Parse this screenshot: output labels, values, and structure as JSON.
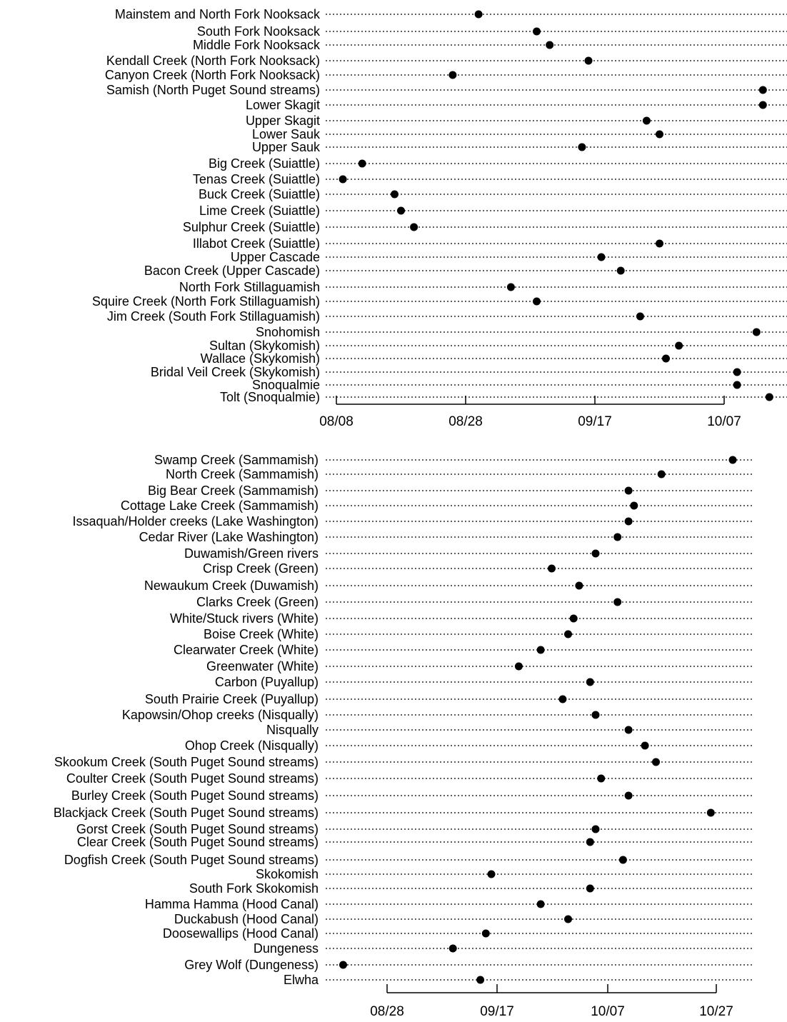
{
  "chart_data": [
    {
      "type": "scatter",
      "title": "",
      "xlabel": "",
      "ylabel": "",
      "grid": "dotted horizontal lines per row",
      "x_ticks": [
        "08/08",
        "08/28",
        "09/17",
        "10/07"
      ],
      "categories": [
        "Mainstem and North Fork Nooksack",
        "South Fork Nooksack",
        "Middle Fork Nooksack",
        "Kendall Creek (North Fork Nooksack)",
        "Canyon Creek (North Fork Nooksack)",
        "Samish (North Puget Sound streams)",
        "Lower Skagit",
        "Upper Skagit",
        "Lower Sauk",
        "Upper Sauk",
        "Big Creek (Suiattle)",
        "Tenas Creek (Suiattle)",
        "Buck Creek (Suiattle)",
        "Lime Creek (Suiattle)",
        "Sulphur Creek (Suiattle)",
        "Illabot Creek (Suiattle)",
        "Upper Cascade",
        "Bacon Creek (Upper Cascade)",
        "North Fork Stillaguamish",
        "Squire Creek (North Fork Stillaguamish)",
        "Jim Creek (South Fork Stillaguamish)",
        "Snohomish",
        "Sultan (Skykomish)",
        "Wallace (Skykomish)",
        "Bridal Veil Creek (Skykomish)",
        "Snoqualmie",
        "Tolt (Snoqualmie)"
      ],
      "values": [
        "08/30",
        "09/08",
        "09/10",
        "09/16",
        "08/26",
        "10/13",
        "10/13",
        "09/25",
        "09/27",
        "09/15",
        "08/12",
        "08/09",
        "08/17",
        "08/18",
        "08/20",
        "09/27",
        "09/18",
        "09/21",
        "09/04",
        "09/08",
        "09/24",
        "10/12",
        "09/30",
        "09/28",
        "10/09",
        "10/09",
        "10/14"
      ]
    },
    {
      "type": "scatter",
      "title": "",
      "xlabel": "",
      "ylabel": "",
      "grid": "dotted horizontal lines per row",
      "x_ticks": [
        "08/28",
        "09/17",
        "10/07",
        "10/27"
      ],
      "categories": [
        "Swamp Creek (Sammamish)",
        "North Creek (Sammamish)",
        "Big Bear Creek (Sammamish)",
        "Cottage Lake Creek (Sammamish)",
        "Issaquah/Holder creeks (Lake Washington)",
        "Cedar River (Lake Washington)",
        "Duwamish/Green rivers",
        "Crisp Creek (Green)",
        "Newaukum Creek (Duwamish)",
        "Clarks Creek (Green)",
        "White/Stuck rivers (White)",
        "Boise Creek (White)",
        "Clearwater Creek (White)",
        "Greenwater (White)",
        "Carbon (Puyallup)",
        "South Prairie Creek (Puyallup)",
        "Kapowsin/Ohop creeks (Nisqually)",
        "Nisqually",
        "Ohop Creek (Nisqually)",
        "Skookum Creek (South Puget Sound streams)",
        "Coulter Creek (South Puget Sound streams)",
        "Burley Creek (South Puget Sound streams)",
        "Blackjack Creek (South Puget Sound streams)",
        "Gorst Creek (South Puget Sound streams)",
        "Clear Creek (South Puget Sound streams)",
        "Dogfish Creek (South Puget Sound streams)",
        "Skokomish",
        "South Fork Skokomish",
        "Hamma Hamma (Hood Canal)",
        "Duckabush (Hood Canal)",
        "Doosewallips (Hood Canal)",
        "Dungeness",
        "Grey Wolf (Dungeness)",
        "Elwha"
      ],
      "values": [
        "10/30",
        "10/17",
        "10/11",
        "10/12",
        "10/11",
        "10/09",
        "10/05",
        "09/27",
        "10/02",
        "10/09",
        "10/01",
        "09/30",
        "09/25",
        "09/21",
        "10/04",
        "09/29",
        "10/05",
        "10/11",
        "10/14",
        "10/16",
        "10/06",
        "10/11",
        "10/26",
        "10/05",
        "10/04",
        "10/10",
        "09/16",
        "10/04",
        "09/25",
        "09/30",
        "09/15",
        "09/09",
        "08/20",
        "09/14"
      ]
    }
  ]
}
